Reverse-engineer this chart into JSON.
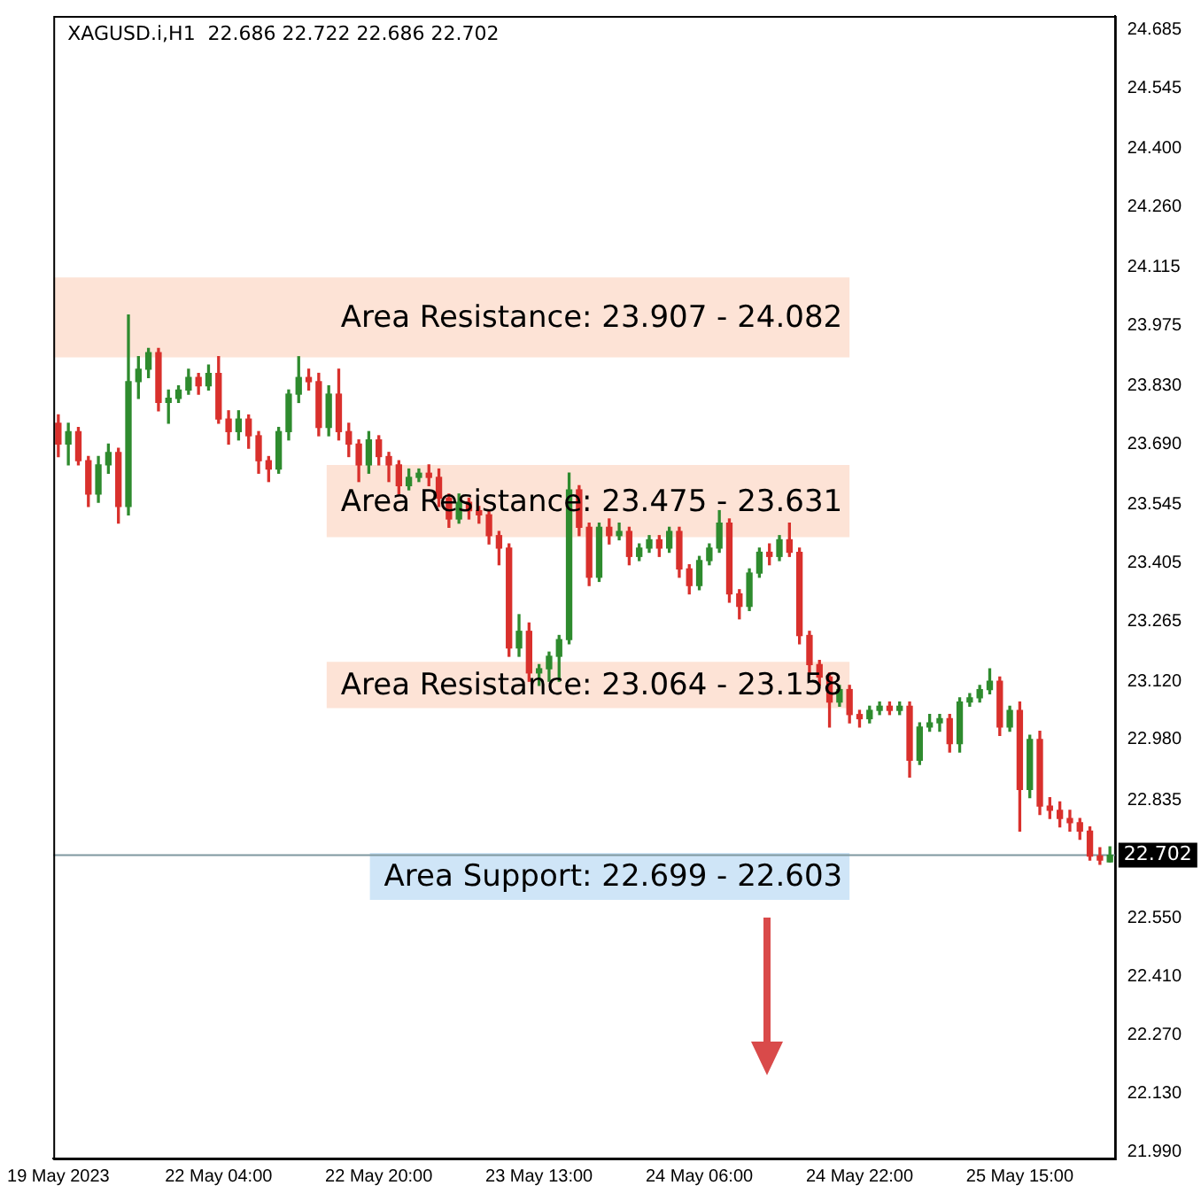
{
  "chart_data": {
    "type": "candlestick",
    "title": "XAGUSD.i,H1  22.686 22.722 22.686 22.702",
    "categories": [
      "19 May 2023",
      null,
      null,
      null,
      null,
      null,
      null,
      null,
      null,
      null,
      null,
      null,
      null,
      null,
      null,
      null,
      "22 May 04:00",
      null,
      null,
      null,
      null,
      null,
      null,
      null,
      null,
      null,
      null,
      null,
      null,
      null,
      null,
      null,
      "22 May 20:00",
      null,
      null,
      null,
      null,
      null,
      null,
      null,
      null,
      null,
      null,
      null,
      null,
      null,
      null,
      null,
      "23 May 13:00",
      null,
      null,
      null,
      null,
      null,
      null,
      null,
      null,
      null,
      null,
      null,
      null,
      null,
      null,
      null,
      "24 May 06:00",
      null,
      null,
      null,
      null,
      null,
      null,
      null,
      null,
      null,
      null,
      null,
      null,
      null,
      null,
      null,
      "24 May 22:00",
      null,
      null,
      null,
      null,
      null,
      null,
      null,
      null,
      null,
      null,
      null,
      null,
      null,
      null,
      null,
      "25 May 15:00",
      null,
      null,
      null,
      null,
      null,
      null,
      null,
      null,
      null
    ],
    "ohlc": [
      [
        23.74,
        23.76,
        23.66,
        23.69
      ],
      [
        23.69,
        23.74,
        23.64,
        23.72
      ],
      [
        23.72,
        23.73,
        23.64,
        23.65
      ],
      [
        23.65,
        23.66,
        23.54,
        23.57
      ],
      [
        23.57,
        23.66,
        23.55,
        23.64
      ],
      [
        23.64,
        23.69,
        23.62,
        23.67
      ],
      [
        23.67,
        23.68,
        23.5,
        23.54
      ],
      [
        23.54,
        24.0,
        23.52,
        23.84
      ],
      [
        23.84,
        23.9,
        23.8,
        23.87
      ],
      [
        23.87,
        23.92,
        23.85,
        23.91
      ],
      [
        23.91,
        23.92,
        23.77,
        23.79
      ],
      [
        23.79,
        23.82,
        23.74,
        23.8
      ],
      [
        23.8,
        23.83,
        23.79,
        23.82
      ],
      [
        23.82,
        23.87,
        23.81,
        23.85
      ],
      [
        23.85,
        23.86,
        23.81,
        23.83
      ],
      [
        23.83,
        23.88,
        23.82,
        23.86
      ],
      [
        23.86,
        23.9,
        23.74,
        23.75
      ],
      [
        23.75,
        23.77,
        23.69,
        23.72
      ],
      [
        23.72,
        23.77,
        23.7,
        23.75
      ],
      [
        23.75,
        23.76,
        23.68,
        23.71
      ],
      [
        23.71,
        23.72,
        23.62,
        23.65
      ],
      [
        23.65,
        23.66,
        23.6,
        23.63
      ],
      [
        23.63,
        23.73,
        23.62,
        23.72
      ],
      [
        23.72,
        23.82,
        23.7,
        23.81
      ],
      [
        23.81,
        23.9,
        23.79,
        23.85
      ],
      [
        23.85,
        23.87,
        23.82,
        23.84
      ],
      [
        23.84,
        23.86,
        23.71,
        23.73
      ],
      [
        23.73,
        23.83,
        23.71,
        23.81
      ],
      [
        23.81,
        23.87,
        23.7,
        23.72
      ],
      [
        23.72,
        23.74,
        23.66,
        23.69
      ],
      [
        23.69,
        23.7,
        23.6,
        23.64
      ],
      [
        23.64,
        23.72,
        23.62,
        23.7
      ],
      [
        23.7,
        23.71,
        23.64,
        23.66
      ],
      [
        23.66,
        23.67,
        23.6,
        23.64
      ],
      [
        23.64,
        23.65,
        23.57,
        23.59
      ],
      [
        23.59,
        23.63,
        23.58,
        23.61
      ],
      [
        23.61,
        23.63,
        23.6,
        23.62
      ],
      [
        23.62,
        23.64,
        23.59,
        23.61
      ],
      [
        23.61,
        23.63,
        23.54,
        23.56
      ],
      [
        23.56,
        23.57,
        23.49,
        23.51
      ],
      [
        23.51,
        23.57,
        23.5,
        23.55
      ],
      [
        23.55,
        23.56,
        23.51,
        23.53
      ],
      [
        23.53,
        23.54,
        23.5,
        23.52
      ],
      [
        23.52,
        23.53,
        23.45,
        23.47
      ],
      [
        23.47,
        23.48,
        23.4,
        23.44
      ],
      [
        23.44,
        23.45,
        23.18,
        23.2
      ],
      [
        23.2,
        23.28,
        23.18,
        23.24
      ],
      [
        23.24,
        23.26,
        23.12,
        23.14
      ],
      [
        23.14,
        23.16,
        23.11,
        23.15
      ],
      [
        23.15,
        23.19,
        23.12,
        23.18
      ],
      [
        23.18,
        23.23,
        23.12,
        23.22
      ],
      [
        23.22,
        23.62,
        23.21,
        23.58
      ],
      [
        23.58,
        23.59,
        23.47,
        23.49
      ],
      [
        23.49,
        23.5,
        23.35,
        23.37
      ],
      [
        23.37,
        23.5,
        23.36,
        23.49
      ],
      [
        23.49,
        23.51,
        23.45,
        23.47
      ],
      [
        23.47,
        23.5,
        23.46,
        23.48
      ],
      [
        23.48,
        23.49,
        23.4,
        23.42
      ],
      [
        23.42,
        23.45,
        23.41,
        23.44
      ],
      [
        23.44,
        23.47,
        23.43,
        23.46
      ],
      [
        23.46,
        23.47,
        23.42,
        23.44
      ],
      [
        23.44,
        23.49,
        23.43,
        23.48
      ],
      [
        23.48,
        23.49,
        23.37,
        23.39
      ],
      [
        23.39,
        23.4,
        23.33,
        23.35
      ],
      [
        23.35,
        23.42,
        23.34,
        23.41
      ],
      [
        23.41,
        23.45,
        23.4,
        23.44
      ],
      [
        23.44,
        23.53,
        23.43,
        23.5
      ],
      [
        23.5,
        23.51,
        23.31,
        23.33
      ],
      [
        23.33,
        23.34,
        23.27,
        23.3
      ],
      [
        23.3,
        23.39,
        23.29,
        23.38
      ],
      [
        23.38,
        23.44,
        23.37,
        23.43
      ],
      [
        23.43,
        23.45,
        23.4,
        23.42
      ],
      [
        23.42,
        23.47,
        23.41,
        23.46
      ],
      [
        23.46,
        23.5,
        23.42,
        23.43
      ],
      [
        23.43,
        23.44,
        23.21,
        23.23
      ],
      [
        23.23,
        23.24,
        23.14,
        23.16
      ],
      [
        23.16,
        23.17,
        23.11,
        23.13
      ],
      [
        23.13,
        23.14,
        23.01,
        23.07
      ],
      [
        23.07,
        23.11,
        23.06,
        23.1
      ],
      [
        23.1,
        23.11,
        23.02,
        23.04
      ],
      [
        23.04,
        23.05,
        23.01,
        23.03
      ],
      [
        23.03,
        23.06,
        23.02,
        23.05
      ],
      [
        23.05,
        23.07,
        23.04,
        23.06
      ],
      [
        23.06,
        23.07,
        23.04,
        23.05
      ],
      [
        23.05,
        23.07,
        23.04,
        23.06
      ],
      [
        23.06,
        23.07,
        22.89,
        22.93
      ],
      [
        22.93,
        23.02,
        22.92,
        23.01
      ],
      [
        23.01,
        23.04,
        23.0,
        23.02
      ],
      [
        23.02,
        23.04,
        23.0,
        23.03
      ],
      [
        23.03,
        23.04,
        22.95,
        22.97
      ],
      [
        22.97,
        23.08,
        22.95,
        23.07
      ],
      [
        23.07,
        23.09,
        23.06,
        23.08
      ],
      [
        23.08,
        23.11,
        23.07,
        23.1
      ],
      [
        23.1,
        23.15,
        23.09,
        23.12
      ],
      [
        23.12,
        23.13,
        22.99,
        23.01
      ],
      [
        23.01,
        23.06,
        23.0,
        23.05
      ],
      [
        23.05,
        23.07,
        22.76,
        22.86
      ],
      [
        22.86,
        22.99,
        22.84,
        22.98
      ],
      [
        22.98,
        23.0,
        22.8,
        22.82
      ],
      [
        22.82,
        22.84,
        22.79,
        22.81
      ],
      [
        22.81,
        22.83,
        22.77,
        22.79
      ],
      [
        22.79,
        22.81,
        22.76,
        22.78
      ],
      [
        22.78,
        22.79,
        22.74,
        22.76
      ],
      [
        22.76,
        22.77,
        22.69,
        22.7
      ],
      [
        22.7,
        22.72,
        22.68,
        22.69
      ],
      [
        22.686,
        22.722,
        22.686,
        22.702
      ]
    ],
    "ylim": [
      21.973,
      24.719
    ],
    "yticks": [
      {
        "value": 21.99,
        "label": "21.990"
      },
      {
        "value": 22.13,
        "label": "22.130"
      },
      {
        "value": 22.27,
        "label": "22.270"
      },
      {
        "value": 22.41,
        "label": "22.410"
      },
      {
        "value": 22.55,
        "label": "22.550"
      },
      {
        "value": 22.835,
        "label": "22.835"
      },
      {
        "value": 22.98,
        "label": "22.980"
      },
      {
        "value": 23.12,
        "label": "23.120"
      },
      {
        "value": 23.265,
        "label": "23.265"
      },
      {
        "value": 23.405,
        "label": "23.405"
      },
      {
        "value": 23.545,
        "label": "23.545"
      },
      {
        "value": 23.69,
        "label": "23.690"
      },
      {
        "value": 23.83,
        "label": "23.830"
      },
      {
        "value": 23.975,
        "label": "23.975"
      },
      {
        "value": 24.115,
        "label": "24.115"
      },
      {
        "value": 24.26,
        "label": "24.260"
      },
      {
        "value": 24.4,
        "label": "24.400"
      },
      {
        "value": 24.545,
        "label": "24.545"
      },
      {
        "value": 24.685,
        "label": "24.685"
      }
    ],
    "bands": [
      {
        "axis": "y",
        "from": 23.907,
        "to": 24.082,
        "label": "Area Resistance: 23.907 - 24.082",
        "color": "#fde3d6"
      },
      {
        "axis": "y",
        "from": 23.475,
        "to": 23.631,
        "label": "Area Resistance: 23.475 - 23.631",
        "color": "#fde3d6"
      },
      {
        "axis": "y",
        "from": 23.064,
        "to": 23.158,
        "label": "Area Resistance: 23.064 - 23.158",
        "color": "#fde3d6"
      },
      {
        "axis": "y",
        "from": 22.603,
        "to": 22.699,
        "label": "Area Support: 22.699 - 22.603",
        "color": "#cfe5f7"
      }
    ],
    "ref_lines": [
      {
        "axis": "y",
        "value": 22.702,
        "label": "22.702",
        "color": "#7f98a0"
      }
    ]
  }
}
